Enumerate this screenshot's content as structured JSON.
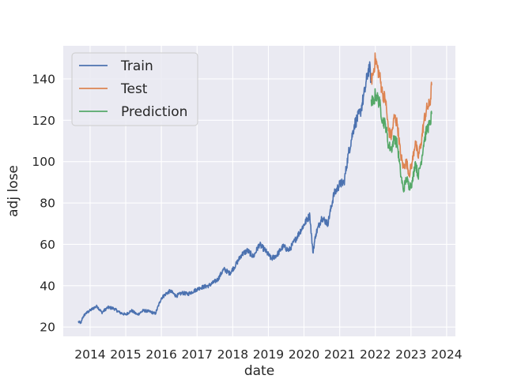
{
  "chart_data": {
    "type": "line",
    "title": "",
    "xlabel": "date",
    "ylabel": "adj lose",
    "x_range": [
      "2013-04-01",
      "2024-03-31"
    ],
    "ylim": [
      15.5,
      156
    ],
    "x_ticks": [
      "2014",
      "2015",
      "2016",
      "2017",
      "2018",
      "2019",
      "2020",
      "2021",
      "2022",
      "2023",
      "2024"
    ],
    "y_ticks": [
      20,
      40,
      60,
      80,
      100,
      120,
      140
    ],
    "grid": true,
    "legend_position": "top-left",
    "colors": {
      "Train": "#4c72b0",
      "Test": "#dd8452",
      "Prediction": "#55a868"
    },
    "series": [
      {
        "name": "Train",
        "points": [
          [
            "2013-09-01",
            22.5
          ],
          [
            "2013-10-01",
            22
          ],
          [
            "2013-10-15",
            24.5
          ],
          [
            "2013-11-15",
            26.5
          ],
          [
            "2014-01-01",
            28
          ],
          [
            "2014-02-15",
            29.5
          ],
          [
            "2014-03-15",
            30
          ],
          [
            "2014-05-01",
            27
          ],
          [
            "2014-07-01",
            29.5
          ],
          [
            "2014-09-01",
            29
          ],
          [
            "2014-11-01",
            27
          ],
          [
            "2015-01-01",
            26
          ],
          [
            "2015-03-01",
            28
          ],
          [
            "2015-05-01",
            26
          ],
          [
            "2015-07-01",
            28
          ],
          [
            "2015-09-01",
            27.5
          ],
          [
            "2015-11-01",
            26.5
          ],
          [
            "2016-01-01",
            34
          ],
          [
            "2016-02-15",
            36
          ],
          [
            "2016-04-01",
            37.5
          ],
          [
            "2016-06-01",
            35
          ],
          [
            "2016-08-01",
            36.5
          ],
          [
            "2016-10-01",
            36
          ],
          [
            "2016-12-01",
            37.5
          ],
          [
            "2017-02-01",
            39
          ],
          [
            "2017-05-01",
            40
          ],
          [
            "2017-08-01",
            43
          ],
          [
            "2017-10-01",
            48
          ],
          [
            "2017-12-01",
            46
          ],
          [
            "2018-02-01",
            50
          ],
          [
            "2018-04-01",
            55
          ],
          [
            "2018-06-01",
            57
          ],
          [
            "2018-08-01",
            54
          ],
          [
            "2018-10-01",
            60
          ],
          [
            "2018-12-01",
            57
          ],
          [
            "2019-02-01",
            53
          ],
          [
            "2019-04-01",
            55
          ],
          [
            "2019-06-01",
            59
          ],
          [
            "2019-08-01",
            57
          ],
          [
            "2019-10-01",
            62
          ],
          [
            "2019-12-01",
            67
          ],
          [
            "2020-02-01",
            72
          ],
          [
            "2020-03-01",
            74
          ],
          [
            "2020-04-01",
            56
          ],
          [
            "2020-05-01",
            65
          ],
          [
            "2020-07-01",
            73
          ],
          [
            "2020-09-01",
            70
          ],
          [
            "2020-11-01",
            84
          ],
          [
            "2021-01-01",
            89
          ],
          [
            "2021-02-15",
            90
          ],
          [
            "2021-04-01",
            104
          ],
          [
            "2021-06-01",
            118
          ],
          [
            "2021-08-01",
            124
          ],
          [
            "2021-09-15",
            134
          ],
          [
            "2021-10-15",
            143
          ],
          [
            "2021-11-01",
            146
          ],
          [
            "2021-11-20",
            139
          ]
        ]
      },
      {
        "name": "Test",
        "points": [
          [
            "2021-11-20",
            139
          ],
          [
            "2021-12-15",
            144
          ],
          [
            "2022-01-01",
            150
          ],
          [
            "2022-01-20",
            146
          ],
          [
            "2022-02-15",
            141
          ],
          [
            "2022-03-15",
            133
          ],
          [
            "2022-04-15",
            130
          ],
          [
            "2022-05-15",
            115
          ],
          [
            "2022-06-15",
            112
          ],
          [
            "2022-07-15",
            122
          ],
          [
            "2022-08-15",
            118
          ],
          [
            "2022-09-15",
            104
          ],
          [
            "2022-10-15",
            97
          ],
          [
            "2022-11-15",
            100
          ],
          [
            "2022-12-15",
            94
          ],
          [
            "2023-01-15",
            100
          ],
          [
            "2023-02-15",
            110
          ],
          [
            "2023-03-15",
            102
          ],
          [
            "2023-04-15",
            109
          ],
          [
            "2023-05-15",
            120
          ],
          [
            "2023-06-15",
            126
          ],
          [
            "2023-07-15",
            128
          ],
          [
            "2023-08-01",
            137
          ]
        ]
      },
      {
        "name": "Prediction",
        "points": [
          [
            "2021-11-20",
            130
          ],
          [
            "2021-12-15",
            128
          ],
          [
            "2022-01-01",
            133
          ],
          [
            "2022-01-20",
            131
          ],
          [
            "2022-02-15",
            128
          ],
          [
            "2022-03-15",
            120
          ],
          [
            "2022-04-15",
            118
          ],
          [
            "2022-05-15",
            108
          ],
          [
            "2022-06-15",
            106
          ],
          [
            "2022-07-15",
            112
          ],
          [
            "2022-08-15",
            108
          ],
          [
            "2022-09-15",
            95
          ],
          [
            "2022-10-15",
            86
          ],
          [
            "2022-11-15",
            92
          ],
          [
            "2022-12-15",
            88
          ],
          [
            "2023-01-15",
            90
          ],
          [
            "2023-02-15",
            100
          ],
          [
            "2023-03-15",
            93
          ],
          [
            "2023-04-15",
            100
          ],
          [
            "2023-05-15",
            110
          ],
          [
            "2023-06-15",
            116
          ],
          [
            "2023-07-15",
            118
          ],
          [
            "2023-08-01",
            123
          ]
        ]
      }
    ]
  }
}
